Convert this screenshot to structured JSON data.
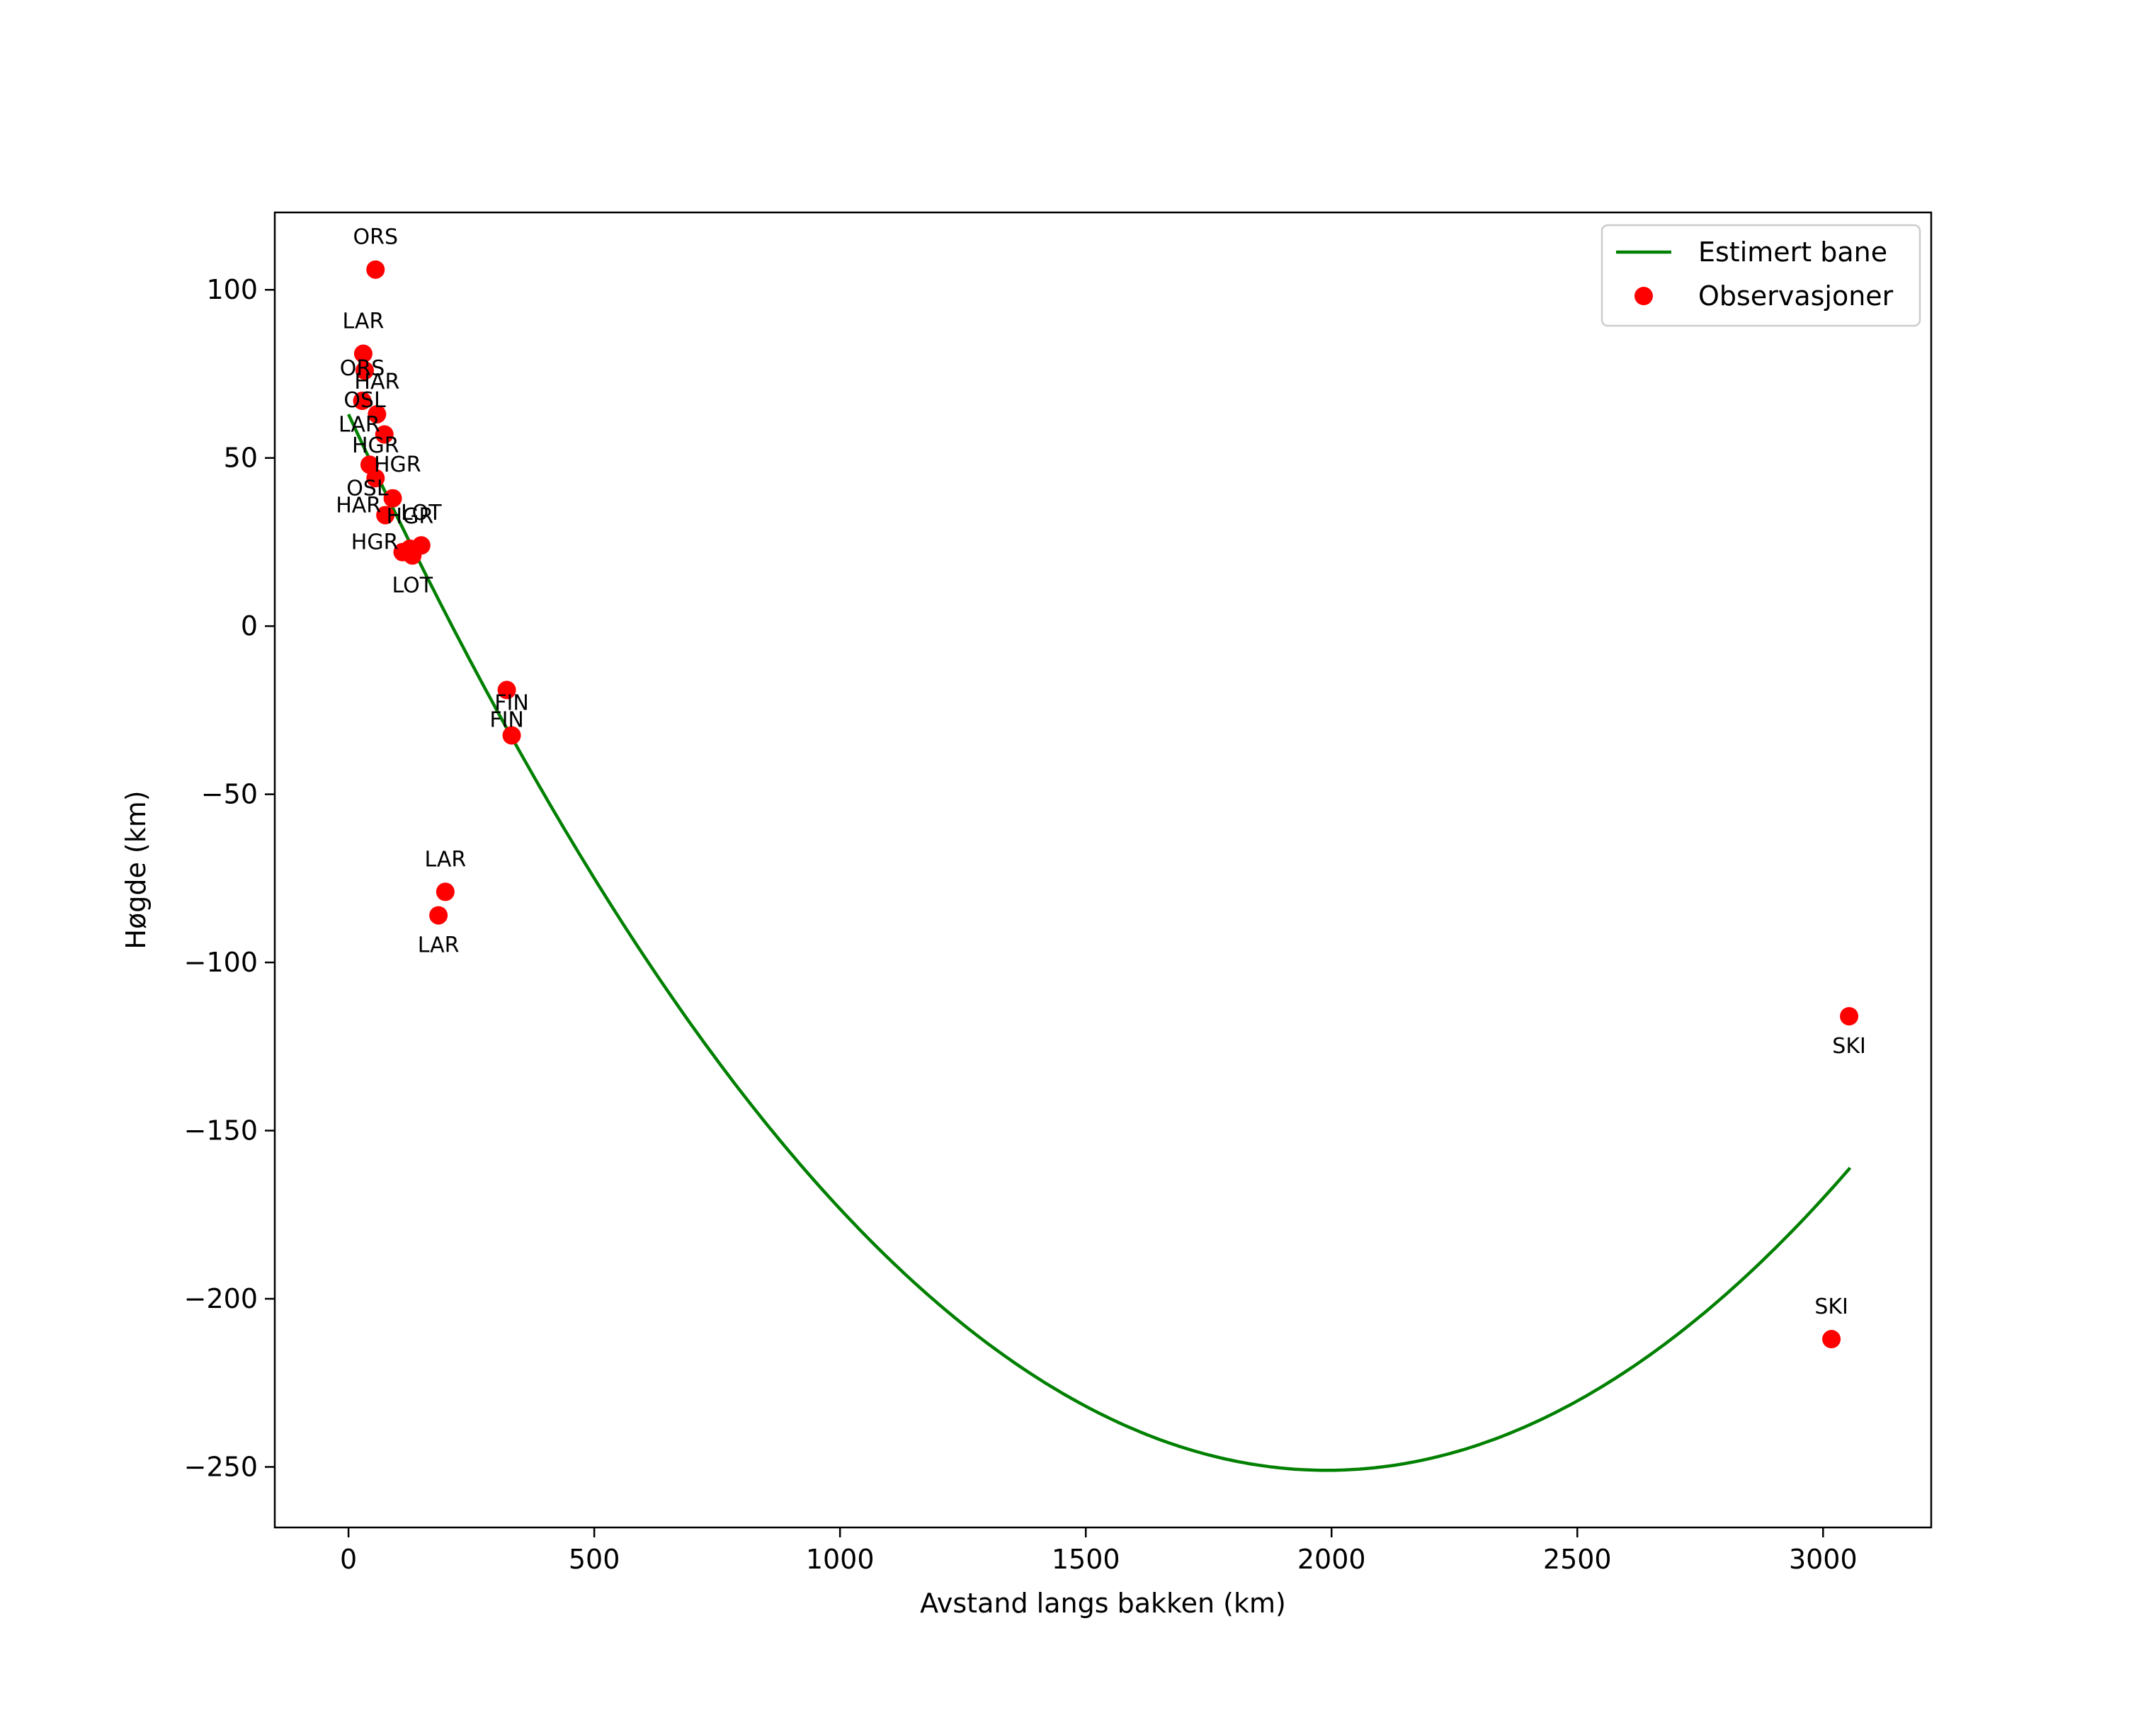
{
  "chart_data": {
    "type": "scatter",
    "title": "",
    "xlabel": "Avstand langs bakken (km)",
    "ylabel": "Høgde (km)",
    "xlim": [
      -150,
      3220
    ],
    "ylim": [
      -268,
      123
    ],
    "xticks": [
      0,
      500,
      1000,
      1500,
      2000,
      2500,
      3000
    ],
    "yticks": [
      100,
      50,
      0,
      -50,
      -100,
      -150,
      -200,
      -250
    ],
    "xtick_labels": [
      "0",
      "500",
      "1000",
      "1500",
      "2000",
      "2500",
      "3000"
    ],
    "ytick_labels": [
      "100",
      "50",
      "0",
      "−50",
      "−100",
      "−150",
      "−200",
      "−250"
    ],
    "grid": false,
    "legend": {
      "position": "top-right",
      "entries": [
        {
          "name": "Estimert bane",
          "kind": "line",
          "color": "#008000"
        },
        {
          "name": "Observasjoner",
          "kind": "marker",
          "color": "#ff0000"
        }
      ]
    },
    "series": [
      {
        "name": "Estimert bane",
        "kind": "line",
        "color": "#008000",
        "x": [
          0,
          150,
          300,
          450,
          600,
          750,
          900,
          1050,
          1200,
          1350,
          1500,
          1650,
          1800,
          1950,
          2000,
          2150,
          2300,
          2450,
          2600,
          2750,
          2900,
          3055
        ],
        "y": [
          63,
          20,
          -20,
          -57,
          -91,
          -122,
          -149,
          -173,
          -194,
          -212,
          -227,
          -238,
          -246,
          -250.5,
          -251,
          -249,
          -241,
          -228,
          -210,
          -208,
          -190,
          -164
        ]
      },
      {
        "name": "Observasjoner",
        "kind": "scatter",
        "color": "#ff0000",
        "points": [
          {
            "label": "ORS",
            "x": 55,
            "y": 106,
            "label_pos": "above"
          },
          {
            "label": "LAR",
            "x": 30,
            "y": 81,
            "label_pos": "above"
          },
          {
            "label": "OSL",
            "x": 33,
            "y": 76,
            "label_pos": "below"
          },
          {
            "label": "ORS",
            "x": 28,
            "y": 67,
            "label_pos": "above"
          },
          {
            "label": "HAR",
            "x": 58,
            "y": 63,
            "label_pos": "above"
          },
          {
            "label": "LAR",
            "x": 73,
            "y": 57,
            "label_pos": "left"
          },
          {
            "label": "HGR",
            "x": 43,
            "y": 48,
            "label_pos": "right"
          },
          {
            "label": "HGR",
            "x": 55,
            "y": 44,
            "label_pos": "above"
          },
          {
            "label": "OSL",
            "x": 90,
            "y": 38,
            "label_pos": "left"
          },
          {
            "label": "HAR",
            "x": 75,
            "y": 33,
            "label_pos": "left"
          },
          {
            "label": "LOT",
            "x": 148,
            "y": 24,
            "label_pos": "above"
          },
          {
            "label": "HGR",
            "x": 125,
            "y": 23,
            "label_pos": "above"
          },
          {
            "label": "HGR",
            "x": 110,
            "y": 22,
            "label_pos": "left"
          },
          {
            "label": "LOT",
            "x": 130,
            "y": 21,
            "label_pos": "below"
          },
          {
            "label": "FIN",
            "x": 322,
            "y": -19,
            "label_pos": "below"
          },
          {
            "label": "FIN",
            "x": 332,
            "y": -32.5,
            "label_pos": "above"
          },
          {
            "label": "LAR",
            "x": 197,
            "y": -79,
            "label_pos": "above"
          },
          {
            "label": "LAR",
            "x": 183,
            "y": -86,
            "label_pos": "below"
          },
          {
            "label": "SKI",
            "x": 3053,
            "y": -116,
            "label_pos": "below"
          },
          {
            "label": "SKI",
            "x": 3017,
            "y": -212,
            "label_pos": "above"
          }
        ]
      }
    ]
  }
}
